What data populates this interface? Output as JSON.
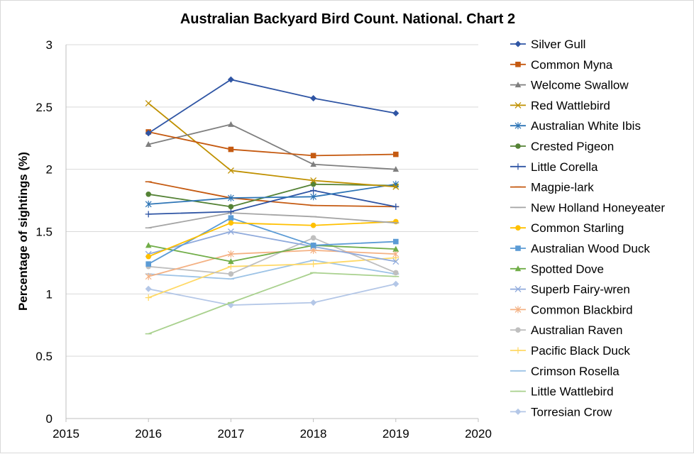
{
  "chart_data": {
    "type": "line",
    "title": "Australian Backyard Bird Count. National. Chart 2",
    "xlabel": "",
    "ylabel": "Percentage of sightings (%)",
    "xlim": [
      2015,
      2020
    ],
    "ylim": [
      0,
      3
    ],
    "x_ticks": [
      "2015",
      "2016",
      "2017",
      "2018",
      "2019",
      "2020"
    ],
    "y_ticks": [
      "0",
      "0.5",
      "1",
      "1.5",
      "2",
      "2.5",
      "3"
    ],
    "grid": "horizontal",
    "legend_position": "right",
    "x": [
      2016,
      2017,
      2018,
      2019
    ],
    "series": [
      {
        "name": "Silver Gull",
        "color": "#2f55a4",
        "marker": "diamond",
        "values": [
          2.29,
          2.72,
          2.57,
          2.45
        ]
      },
      {
        "name": "Common Myna",
        "color": "#c55a11",
        "marker": "square",
        "values": [
          2.3,
          2.16,
          2.11,
          2.12
        ]
      },
      {
        "name": "Welcome Swallow",
        "color": "#7f7f7f",
        "marker": "triangle",
        "values": [
          2.2,
          2.36,
          2.04,
          2.0
        ]
      },
      {
        "name": "Red Wattlebird",
        "color": "#bf9000",
        "marker": "x",
        "values": [
          2.53,
          1.99,
          1.91,
          1.86
        ]
      },
      {
        "name": "Australian White Ibis",
        "color": "#2e75b6",
        "marker": "asterisk",
        "values": [
          1.72,
          1.77,
          1.78,
          1.88
        ]
      },
      {
        "name": "Crested Pigeon",
        "color": "#548235",
        "marker": "circle",
        "values": [
          1.8,
          1.7,
          1.88,
          1.87
        ]
      },
      {
        "name": "Little Corella",
        "color": "#2f55a4",
        "marker": "plus",
        "values": [
          1.64,
          1.66,
          1.83,
          1.7
        ]
      },
      {
        "name": "Magpie-lark",
        "color": "#c55a11",
        "marker": "dash",
        "values": [
          1.9,
          1.77,
          1.71,
          1.7
        ]
      },
      {
        "name": "New Holland Honeyeater",
        "color": "#a5a5a5",
        "marker": "dash",
        "values": [
          1.53,
          1.65,
          1.62,
          1.57
        ]
      },
      {
        "name": "Common Starling",
        "color": "#ffc000",
        "marker": "circle",
        "values": [
          1.3,
          1.57,
          1.55,
          1.58
        ]
      },
      {
        "name": "Australian Wood Duck",
        "color": "#5b9bd5",
        "marker": "square",
        "values": [
          1.24,
          1.61,
          1.39,
          1.42
        ]
      },
      {
        "name": "Spotted Dove",
        "color": "#70ad47",
        "marker": "triangle",
        "values": [
          1.39,
          1.26,
          1.39,
          1.36
        ]
      },
      {
        "name": "Superb Fairy-wren",
        "color": "#8faadc",
        "marker": "x",
        "values": [
          1.32,
          1.5,
          1.38,
          1.26
        ]
      },
      {
        "name": "Common Blackbird",
        "color": "#f4b183",
        "marker": "asterisk",
        "values": [
          1.14,
          1.32,
          1.35,
          1.32
        ]
      },
      {
        "name": "Australian Raven",
        "color": "#bfbfbf",
        "marker": "circle",
        "values": [
          1.22,
          1.16,
          1.45,
          1.17
        ]
      },
      {
        "name": "Pacific Black Duck",
        "color": "#ffd966",
        "marker": "plus",
        "values": [
          0.97,
          1.22,
          1.24,
          1.29
        ]
      },
      {
        "name": "Crimson Rosella",
        "color": "#9dc3e6",
        "marker": "dash",
        "values": [
          1.16,
          1.12,
          1.27,
          1.16
        ]
      },
      {
        "name": "Little Wattlebird",
        "color": "#a9d18e",
        "marker": "dash",
        "values": [
          0.68,
          0.93,
          1.17,
          1.14
        ]
      },
      {
        "name": "Torresian Crow",
        "color": "#b4c7e7",
        "marker": "diamond",
        "values": [
          1.04,
          0.91,
          0.93,
          1.08
        ]
      }
    ]
  }
}
